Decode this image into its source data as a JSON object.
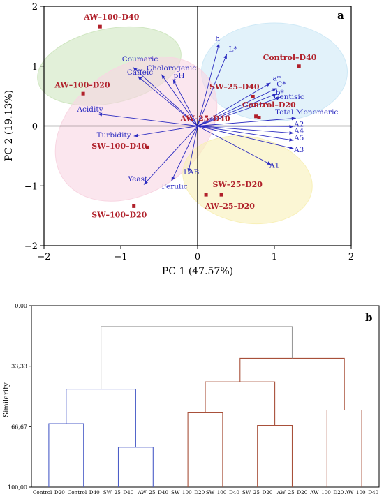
{
  "chart_data": [
    {
      "type": "scatter",
      "panel": "a",
      "xlabel": "PC 1 (47.57%)",
      "ylabel": "PC 2 (19.13%)",
      "xlim": [
        -2,
        2
      ],
      "ylim": [
        -2,
        2
      ],
      "xticks": [
        -2,
        -1,
        0,
        1,
        2
      ],
      "yticks": [
        -2,
        -1,
        0,
        1,
        2
      ],
      "zero_lines": true,
      "groups": [
        {
          "cx": -1.15,
          "cy": 1.0,
          "rx": 0.95,
          "ry": 0.62,
          "rot": -12,
          "color": "#cfe6c0"
        },
        {
          "cx": 1.0,
          "cy": 0.9,
          "rx": 0.95,
          "ry": 0.82,
          "rot": 0,
          "color": "#cfe9f6"
        },
        {
          "cx": -0.8,
          "cy": -0.05,
          "rx": 1.15,
          "ry": 1.05,
          "rot": -35,
          "color": "#f8d6e2"
        },
        {
          "cx": 0.65,
          "cy": -0.9,
          "rx": 0.85,
          "ry": 0.72,
          "rot": 10,
          "color": "#f8f0b8"
        }
      ],
      "samples": [
        {
          "label": "AW–100–D40",
          "x": -1.27,
          "y": 1.66,
          "lx": -1.12,
          "ly": 1.78
        },
        {
          "label": "AW–100–D20",
          "x": -1.49,
          "y": 0.54,
          "lx": -1.5,
          "ly": 0.64
        },
        {
          "label": "Control–D40",
          "x": 1.32,
          "y": 1.0,
          "lx": 1.2,
          "ly": 1.1
        },
        {
          "label": "SW–25–D40",
          "x": 0.72,
          "y": 0.49,
          "lx": 0.48,
          "ly": 0.61
        },
        {
          "label": "Control–D20",
          "x": 0.76,
          "y": 0.16,
          "lx": 0.93,
          "ly": 0.31
        },
        {
          "label": "AW–25–D40",
          "x": 0.8,
          "y": 0.14,
          "lx": 0.1,
          "ly": 0.08
        },
        {
          "label": "SW–100–D40",
          "x": -0.65,
          "y": -0.36,
          "lx": -1.02,
          "ly": -0.38
        },
        {
          "label": "SW–25–D20",
          "x": 0.31,
          "y": -1.15,
          "lx": 0.52,
          "ly": -1.02
        },
        {
          "label": "AW–25–D20",
          "x": 0.11,
          "y": -1.15,
          "lx": 0.42,
          "ly": -1.38
        },
        {
          "label": "SW–100–D20",
          "x": -0.83,
          "y": -1.34,
          "lx": -1.02,
          "ly": -1.53
        }
      ],
      "loadings": [
        {
          "label": "h",
          "x": 0.28,
          "y": 1.38,
          "lx": 0.26,
          "ly": 1.42
        },
        {
          "label": "L*",
          "x": 0.38,
          "y": 1.2,
          "lx": 0.46,
          "ly": 1.25
        },
        {
          "label": "a*",
          "x": 0.95,
          "y": 0.72,
          "lx": 1.03,
          "ly": 0.76
        },
        {
          "label": "C*",
          "x": 1.03,
          "y": 0.63,
          "lx": 1.09,
          "ly": 0.66
        },
        {
          "label": "b*",
          "x": 1.03,
          "y": 0.54,
          "lx": 1.07,
          "ly": 0.52
        },
        {
          "label": "Gentisic",
          "x": 1.08,
          "y": 0.48,
          "lx": 1.19,
          "ly": 0.45
        },
        {
          "label": "Total Monomeric",
          "x": 1.28,
          "y": 0.13,
          "lx": 1.42,
          "ly": 0.19
        },
        {
          "label": "A2",
          "x": 1.25,
          "y": -0.01,
          "lx": 1.32,
          "ly": -0.01
        },
        {
          "label": "A4",
          "x": 1.25,
          "y": -0.12,
          "lx": 1.32,
          "ly": -0.12
        },
        {
          "label": "A5",
          "x": 1.25,
          "y": -0.24,
          "lx": 1.32,
          "ly": -0.24
        },
        {
          "label": "A3",
          "x": 1.25,
          "y": -0.38,
          "lx": 1.32,
          "ly": -0.44
        },
        {
          "label": "A1",
          "x": 0.96,
          "y": -0.65,
          "lx": 1.0,
          "ly": -0.7
        },
        {
          "label": "Coumaric",
          "x": -0.84,
          "y": 0.98,
          "lx": -0.75,
          "ly": 1.08
        },
        {
          "label": "Caffeic",
          "x": -0.78,
          "y": 0.83,
          "lx": -0.75,
          "ly": 0.86
        },
        {
          "label": "Cholorogenic",
          "x": -0.47,
          "y": 0.86,
          "lx": -0.34,
          "ly": 0.93
        },
        {
          "label": "pH",
          "x": -0.32,
          "y": 0.78,
          "lx": -0.24,
          "ly": 0.8
        },
        {
          "label": "Acidity",
          "x": -1.3,
          "y": 0.2,
          "lx": -1.4,
          "ly": 0.24
        },
        {
          "label": "Turbidity",
          "x": -0.83,
          "y": -0.17,
          "lx": -1.09,
          "ly": -0.19
        },
        {
          "label": "LAB",
          "x": -0.12,
          "y": -0.78,
          "lx": -0.08,
          "ly": -0.81
        },
        {
          "label": "Ferulic",
          "x": -0.34,
          "y": -0.92,
          "lx": -0.3,
          "ly": -1.05
        },
        {
          "label": "Yeast",
          "x": -0.7,
          "y": -0.98,
          "lx": -0.78,
          "ly": -0.93
        }
      ],
      "group_color": "#2b2bc0",
      "sample_color": "#b0202a"
    },
    {
      "type": "dendrogram",
      "panel": "b",
      "ylabel": "Similarity",
      "ylim": [
        0,
        100
      ],
      "yticks": [
        "0,00",
        "33,33",
        "66,67",
        "100,00"
      ],
      "ytick_values": [
        0,
        33.33,
        66.67,
        100
      ],
      "leaves": [
        "Control–D20",
        "Control–D40",
        "SW–25–D40",
        "AW–25–D40",
        "SW–100–D20",
        "SW–100–D40",
        "SW–25–D20",
        "AW–25–D20",
        "AW–100–D20",
        "AW–100–D40"
      ],
      "cluster_colors": [
        "#4c5ec8",
        "#a8503a",
        "#999999"
      ],
      "merges": [
        {
          "a": 0,
          "b": 1,
          "sim": 65,
          "color": 0
        },
        {
          "a": 2,
          "b": 3,
          "sim": 78,
          "color": 0
        },
        {
          "a": 10,
          "b": 11,
          "sim": 46,
          "color": 0
        },
        {
          "a": 4,
          "b": 5,
          "sim": 59,
          "color": 1
        },
        {
          "a": 6,
          "b": 7,
          "sim": 66,
          "color": 1
        },
        {
          "a": 13,
          "b": 14,
          "sim": 42,
          "color": 1
        },
        {
          "a": 8,
          "b": 9,
          "sim": 57.5,
          "color": 1
        },
        {
          "a": 15,
          "b": 16,
          "sim": 29,
          "color": 1
        },
        {
          "a": 12,
          "b": 17,
          "sim": 11.5,
          "color": 2
        }
      ]
    }
  ]
}
